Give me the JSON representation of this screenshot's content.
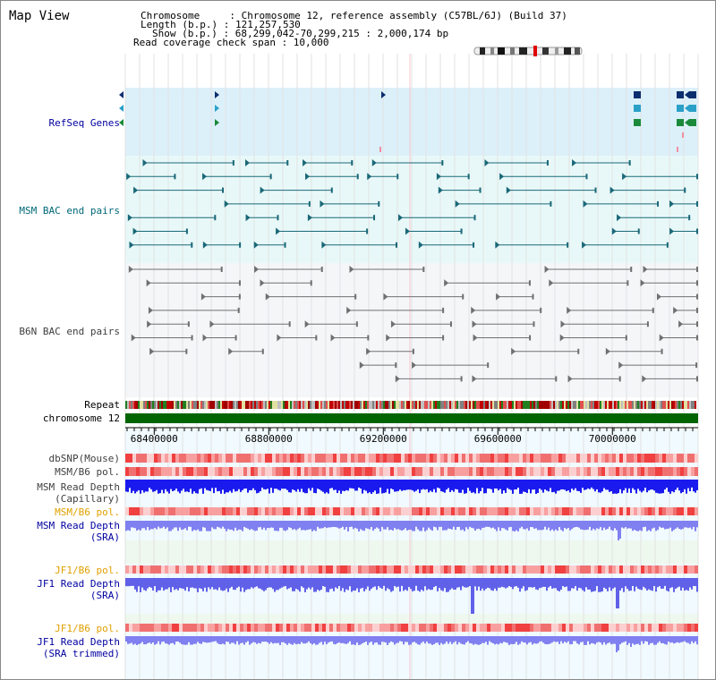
{
  "app_title": "Map View",
  "info": {
    "chromosome_line": "Chromosome     : Chromosome 12, reference assembly (C57BL/6J) (Build 37)",
    "length_line": "Length (b.p.) : 121,257,530",
    "show_line": "Show (b.p.) : 68,299,042-70,299,215 : 2,000,174 bp",
    "span_line": "Read coverage check span : 10,000"
  },
  "tracks": {
    "refseq": "RefSeq Genes",
    "msm_bac": "MSM BAC end pairs",
    "b6n_bac": "B6N BAC end pairs",
    "repeat": "Repeat",
    "chromosome": "chromosome 12",
    "dbsnp": "dbSNP(Mouse)",
    "msm_pol_1": "MSM/B6 pol.",
    "msm_depth_cap_1": "MSM Read Depth",
    "msm_depth_cap_2": "(Capillary)",
    "msm_pol_2": "MSM/B6 pol.",
    "msm_depth_sra_1": "MSM Read Depth",
    "msm_depth_sra_2": "(SRA)",
    "jf1_pol_1": "JF1/B6 pol.",
    "jf1_depth_sra_1": "JF1 Read Depth",
    "jf1_depth_sra_2": "(SRA)",
    "jf1_pol_2": "JF1/B6 pol.",
    "jf1_depth_trim_1": "JF1 Read Depth",
    "jf1_depth_trim_2": "(SRA trimmed)"
  },
  "ruler": {
    "ticks": [
      "68400000",
      "68800000",
      "69200000",
      "69600000",
      "70000000"
    ],
    "tick_values": [
      68400000,
      68800000,
      69200000,
      69600000,
      70000000
    ],
    "start": 68299042,
    "end": 70299215
  },
  "colors": {
    "refseq_bg": "#dcf0fa",
    "msm_bg": "#e8f8f8",
    "b6n_bg": "#f4f6f8",
    "chromosome": "#006400",
    "depth_msm": "#1a1aee",
    "depth_sra": "#8080f0",
    "label_teal": "#006878",
    "label_blue": "#0000a0",
    "label_orange": "#e0a000",
    "label_gray": "#404040"
  }
}
